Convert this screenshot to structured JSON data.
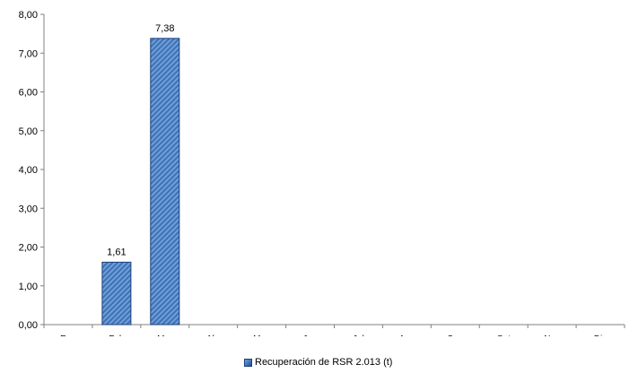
{
  "chart_data": {
    "type": "bar",
    "categories": [
      "Ene",
      "Feb",
      "Mar",
      "Abr",
      "May",
      "Jun",
      "Jul",
      "Ago",
      "Sep",
      "Oct",
      "Nov",
      "Dic"
    ],
    "series": [
      {
        "name": "Recuperación de RSR 2.013 (t)",
        "values": [
          null,
          1.61,
          7.38,
          null,
          null,
          null,
          null,
          null,
          null,
          null,
          null,
          null
        ]
      }
    ],
    "data_labels": [
      "",
      "1,61",
      "7,38",
      "",
      "",
      "",
      "",
      "",
      "",
      "",
      "",
      ""
    ],
    "yticks": [
      "0,00",
      "1,00",
      "2,00",
      "3,00",
      "4,00",
      "5,00",
      "6,00",
      "7,00",
      "8,00"
    ],
    "ylim": [
      0,
      8
    ],
    "grid": false,
    "legend_position": "bottom",
    "colors": {
      "bar_light": "#6fa1d9",
      "bar_dark": "#1f4f96",
      "bar_edge": "#1b3f7a",
      "axis": "#808080"
    }
  }
}
